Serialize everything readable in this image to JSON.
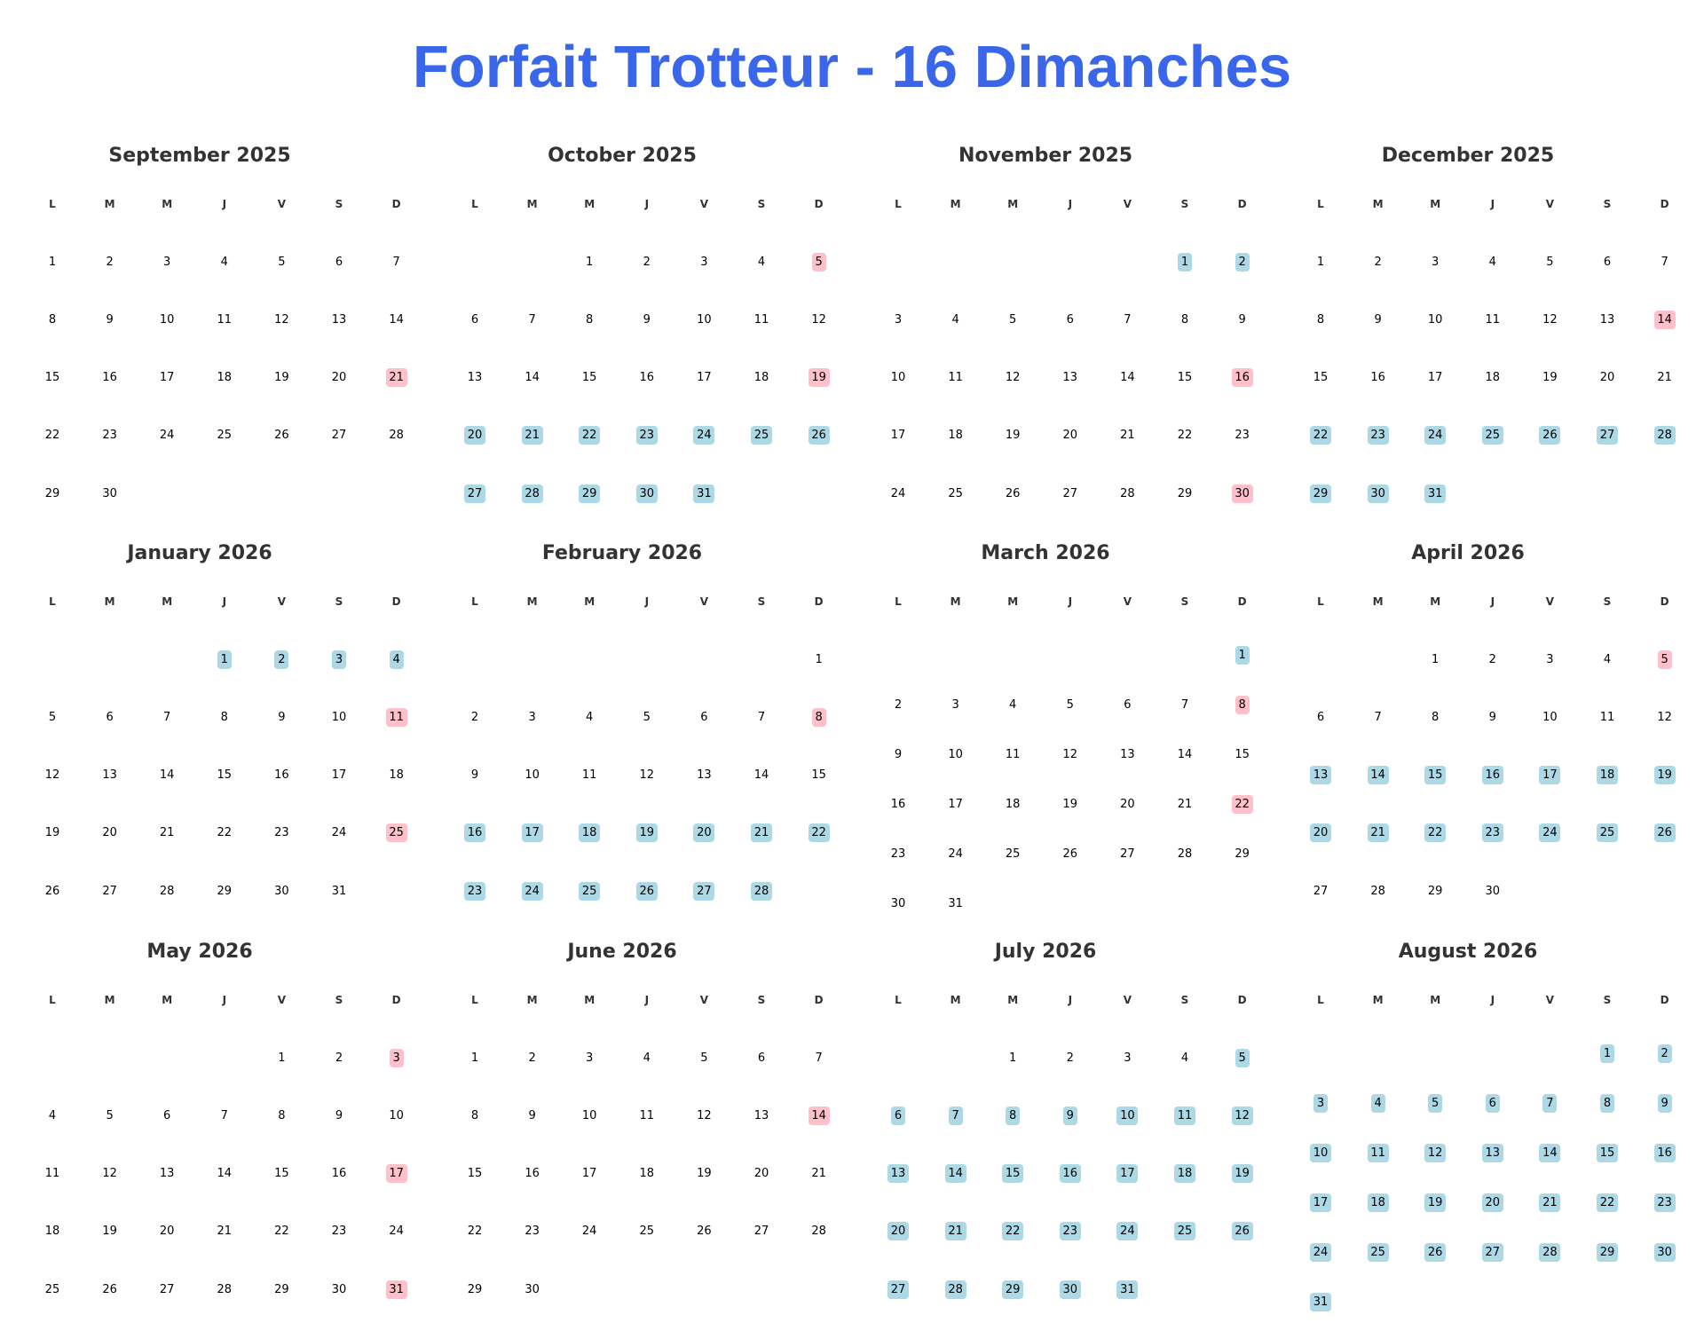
{
  "title": "Forfait Trotteur - 16 Dimanches",
  "colors": {
    "title": "#3a67ea",
    "forfait": "#add8e6",
    "dimanche": "#ffc0cb"
  },
  "weekdays": [
    "L",
    "M",
    "M",
    "J",
    "V",
    "S",
    "D"
  ],
  "months": [
    {
      "title": "September 2025",
      "days": 30,
      "start": 0,
      "pink": [
        21
      ],
      "blue": []
    },
    {
      "title": "October 2025",
      "days": 31,
      "start": 2,
      "pink": [
        5,
        19
      ],
      "blue": [
        20,
        21,
        22,
        23,
        24,
        25,
        26,
        27,
        28,
        29,
        30,
        31
      ]
    },
    {
      "title": "November 2025",
      "days": 30,
      "start": 5,
      "pink": [
        16,
        30
      ],
      "blue": [
        1,
        2
      ]
    },
    {
      "title": "December 2025",
      "days": 31,
      "start": 0,
      "pink": [
        14
      ],
      "blue": [
        22,
        23,
        24,
        25,
        26,
        27,
        28,
        29,
        30,
        31
      ]
    },
    {
      "title": "January 2026",
      "days": 31,
      "start": 3,
      "pink": [
        11,
        25
      ],
      "blue": [
        1,
        2,
        3,
        4
      ]
    },
    {
      "title": "February 2026",
      "days": 28,
      "start": 6,
      "pink": [
        8
      ],
      "blue": [
        16,
        17,
        18,
        19,
        20,
        21,
        22,
        23,
        24,
        25,
        26,
        27,
        28
      ]
    },
    {
      "title": "March 2026",
      "days": 31,
      "start": 6,
      "pink": [
        8,
        22
      ],
      "blue": [
        1
      ]
    },
    {
      "title": "April 2026",
      "days": 30,
      "start": 2,
      "pink": [
        5
      ],
      "blue": [
        13,
        14,
        15,
        16,
        17,
        18,
        19,
        20,
        21,
        22,
        23,
        24,
        25,
        26
      ]
    },
    {
      "title": "May 2026",
      "days": 31,
      "start": 4,
      "pink": [
        3,
        17,
        31
      ],
      "blue": []
    },
    {
      "title": "June 2026",
      "days": 30,
      "start": 0,
      "pink": [
        14
      ],
      "blue": []
    },
    {
      "title": "July 2026",
      "days": 31,
      "start": 2,
      "pink": [],
      "blue": [
        5,
        6,
        7,
        8,
        9,
        10,
        11,
        12,
        13,
        14,
        15,
        16,
        17,
        18,
        19,
        20,
        21,
        22,
        23,
        24,
        25,
        26,
        27,
        28,
        29,
        30,
        31
      ]
    },
    {
      "title": "August 2026",
      "days": 31,
      "start": 5,
      "pink": [],
      "blue": [
        1,
        2,
        3,
        4,
        5,
        6,
        7,
        8,
        9,
        10,
        11,
        12,
        13,
        14,
        15,
        16,
        17,
        18,
        19,
        20,
        21,
        22,
        23,
        24,
        25,
        26,
        27,
        28,
        29,
        30,
        31
      ]
    }
  ]
}
